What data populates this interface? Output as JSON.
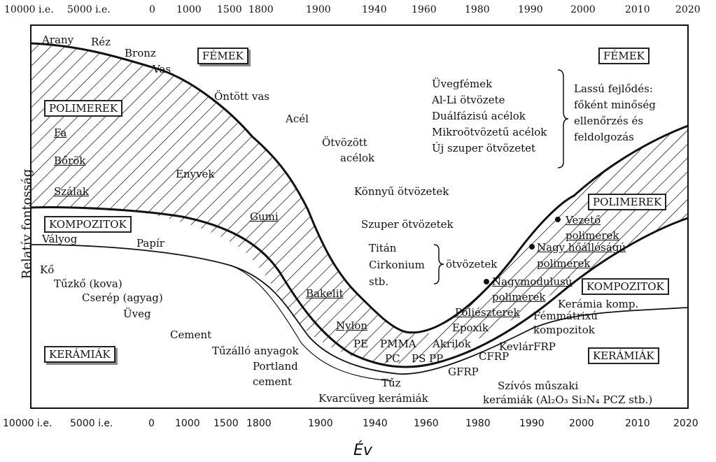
{
  "axis": {
    "x_title": "Év",
    "y_title": "Relatív fontosság",
    "top_ticks": [
      "10000 i.e.",
      "5000 i.e.",
      "0",
      "1000",
      "1500",
      "1800",
      "1900",
      "1940",
      "1960",
      "1980",
      "1990",
      "2000",
      "2010",
      "2020"
    ],
    "bottom_ticks": [
      "10000 i.e.",
      "5000 i.e.",
      "0",
      "1000",
      "1500",
      "1800",
      "1900",
      "1940",
      "1960",
      "1980",
      "1990",
      "2000",
      "2010",
      "2020"
    ]
  },
  "groups": {
    "femek_left": "FÉMEK",
    "femek_right": "FÉMEK",
    "polimerek_left": "POLIMEREK",
    "polimerek_right": "POLIMEREK",
    "kompozitok_left": "KOMPOZITOK",
    "kompozitok_right": "KOMPOZITOK",
    "keramiak_left": "KERÁMIÁK",
    "keramiak_right": "KERÁMIÁK"
  },
  "metals": {
    "arany": "Arany",
    "rez": "Réz",
    "bronz": "Bronz",
    "vas": "Vas",
    "ontott_vas": "Öntött vas",
    "acel": "Acél",
    "otvozott_acelok_1": "Ötvözött",
    "otvozott_acelok_2": "acélok",
    "konnyu": "Könnyű ötvözetek",
    "szuper": "Szuper ötvözetek",
    "titan": "Titán",
    "cirkonium": "Cirkonium",
    "stb": "stb.",
    "otvozetek": "ötvözetek",
    "uveg": "Üvegfémek",
    "alli": "Al-Li ötvözete",
    "dual": "Duálfázisú acélok",
    "mikro": "Mikroötvözetű acélok",
    "uj": "Új szuper ötvözetet",
    "lassu_1": "Lassú fejlődés:",
    "lassu_2": "főként minőség",
    "lassu_3": "ellenőrzés és",
    "lassu_4": "feldolgozás"
  },
  "polymers": {
    "fa": "Fa",
    "borok": "Bőrök",
    "szalak": "Szálak",
    "enyvek": "Enyvek",
    "gumi": "Gumi",
    "bakelit": "Bakelit",
    "nylon": "Nylon",
    "pe": "PE",
    "pmma": "PMMA",
    "pc": "PC",
    "ps": "PS",
    "pp": "PP",
    "akrilok": "Akrilok",
    "epoxik": "Epoxik",
    "poliesz": "Poliészterek",
    "nagymod_1": "Nagymodulusú",
    "nagymod_2": "polimerek",
    "nagyho_1": "Nagy hőállóságú",
    "nagyho_2": "polimerek",
    "vezeto_1": "Vezető",
    "vezeto_2": "polimerek"
  },
  "composites": {
    "valyog": "Vályog",
    "papir": "Papír",
    "gfrp": "GFRP",
    "cfrp": "CFRP",
    "kevlar": "KevlárFRP",
    "keramia_komp": "Kerámia komp.",
    "femmatrix_1": "Fémmátrixú",
    "femmatrix_2": "kompozitok"
  },
  "ceramics": {
    "ko": "Kő",
    "tuzko": "Tűzkő (kova)",
    "cserep": "Cserép (agyag)",
    "uveg": "Üveg",
    "cement": "Cement",
    "tuzallo": "Tűzálló anyagok",
    "portland": "Portland",
    "cement2": "cement",
    "tuz": "Tűz",
    "kvarc": "Kvarcüveg kerámiák",
    "szivos": "Szívós műszaki",
    "keramiak_list": "kerámiák (Al₂O₃ Si₃N₄ PCZ stb.)"
  }
}
